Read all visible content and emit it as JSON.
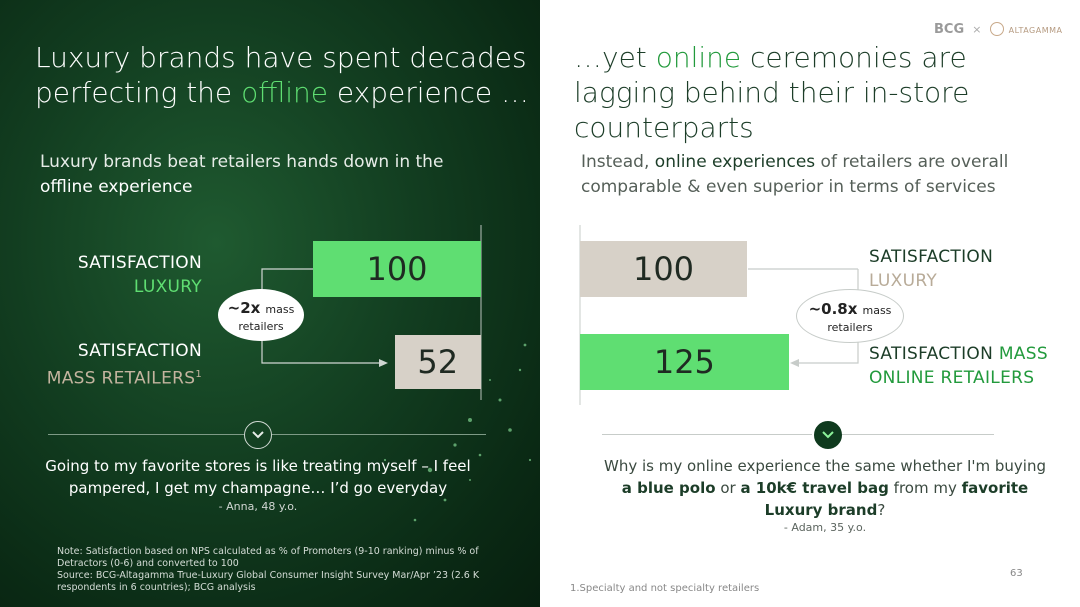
{
  "left": {
    "title_pre": "Luxury brands have spent decades perfecting the ",
    "title_accent": "offline",
    "title_post": " experience …",
    "subtitle_pre": "Luxury brands beat retailers hands down in the ",
    "subtitle_strong": "offline experience",
    "row1_label1": "SATISFACTION",
    "row1_label2": "LUXURY",
    "row2_label1": "SATISFACTION",
    "row2_label2": "MASS RETAILERS",
    "row2_sup": "1",
    "ratio_big": "~2x",
    "ratio_small1": "mass",
    "ratio_small2": "retailers",
    "quote": "Going to my favorite stores is like treating myself – I feel pampered, I get my champagne… I’d go everyday",
    "quote_attrib": "- Anna, 48 y.o.",
    "note": "Note:  Satisfaction based on NPS calculated as % of Promoters (9-10 ranking) minus % of Detractors (0-6) and converted to 100",
    "source": "Source: BCG-Altagamma True-Luxury Global Consumer Insight Survey Mar/Apr ’23 (2.6 K respondents in 6 countries); BCG analysis"
  },
  "right": {
    "title_pre": "…yet ",
    "title_accent": "online",
    "title_post": " ceremonies are lagging behind their in-store counterparts",
    "subtitle_pre": "Instead, ",
    "subtitle_strong": "online experiences",
    "subtitle_post": " of retailers are overall comparable & even superior in terms of services",
    "row1_label1": "SATISFACTION",
    "row1_label2": "LUXURY",
    "row2_label1": "SATISFACTION ",
    "row2_label1_accent": "MASS",
    "row2_label2": "ONLINE RETAILERS",
    "ratio_big": "~0.8x",
    "ratio_small1": "mass",
    "ratio_small2": "retailers",
    "quote_pre": "Why is my online experience the same whether I'm buying ",
    "quote_b1": "a blue polo",
    "quote_mid": " or ",
    "quote_b2": "a 10k€ travel bag",
    "quote_mid2": " from my ",
    "quote_b3": "favorite Luxury brand",
    "quote_post": "?",
    "quote_attrib": "- Adam, 35 y.o.",
    "footnote": "1.Specialty and not specialty retailers",
    "page_number": "63",
    "logo_bcg": "BCG",
    "logo_x": "×",
    "logo_alta": "ALTAGAMMA"
  },
  "colors": {
    "accent_green": "#5fde72",
    "luxury_bar_beige": "#d7d1c8",
    "dark_green": "#1c3d28"
  },
  "chart_data": [
    {
      "type": "bar",
      "orientation": "horizontal",
      "categories": [
        "SATISFACTION LUXURY",
        "SATISFACTION MASS RETAILERS"
      ],
      "values": [
        100,
        52
      ],
      "title": "Luxury brands beat retailers hands down in the offline experience"
    },
    {
      "type": "bar",
      "orientation": "horizontal",
      "categories": [
        "SATISFACTION LUXURY",
        "SATISFACTION MASS ONLINE RETAILERS"
      ],
      "values": [
        100,
        125
      ],
      "title": "Instead, online experiences of retailers are overall comparable & even superior in terms of services"
    }
  ]
}
